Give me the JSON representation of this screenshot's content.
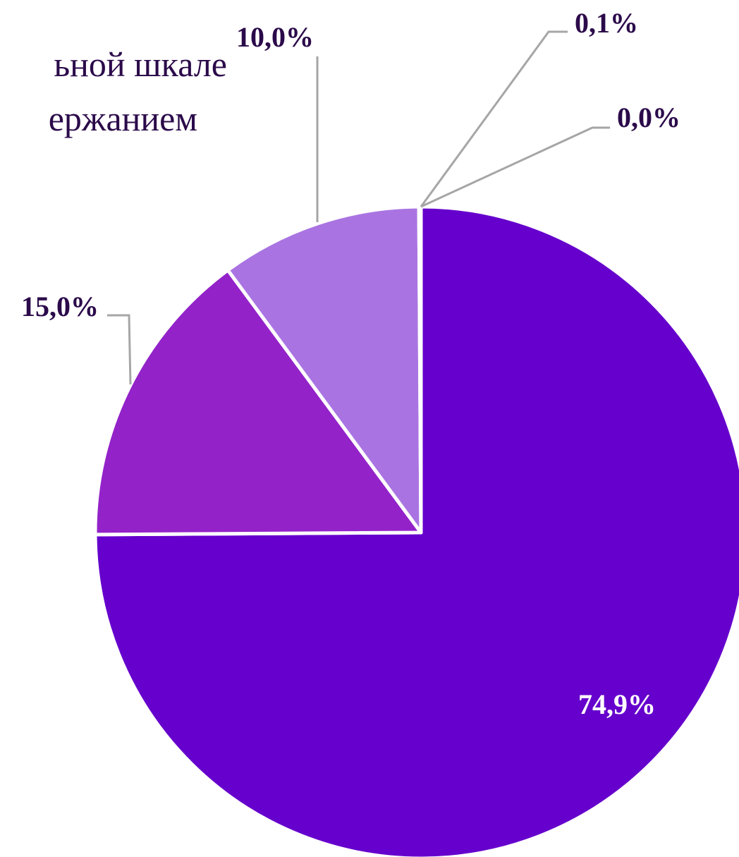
{
  "chart_data": {
    "type": "pie",
    "title_lines": [
      "ьной шкале",
      "ержанием"
    ],
    "values": [
      74.9,
      15.0,
      10.0,
      0.1,
      0.0
    ],
    "value_labels": [
      "74,9%",
      "15,0%",
      "10,0%",
      "0,1%",
      "0,0%"
    ],
    "colors": [
      "#6600cc",
      "#9322c9",
      "#a974e2",
      "#c9a8ef",
      "#e2d2f7"
    ],
    "label_color": "#2b0a4a",
    "inner_label_color": "#ffffff"
  }
}
